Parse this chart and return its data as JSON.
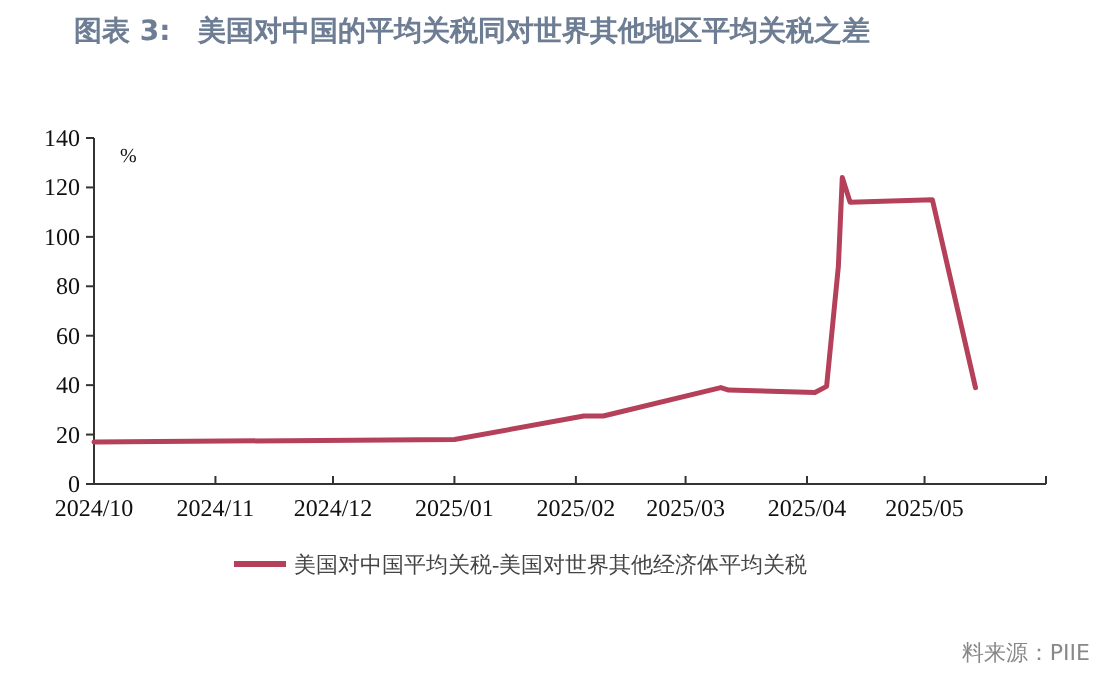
{
  "chart_data": {
    "type": "line",
    "title": "图表 3:　美国对中国的平均关税同对世界其他地区平均关税之差",
    "ylabel": "%",
    "x": [
      "2024-10-01",
      "2025-01-01",
      "2025-02-03",
      "2025-02-08",
      "2025-03-10",
      "2025-03-12",
      "2025-04-03",
      "2025-04-06",
      "2025-04-09",
      "2025-04-10",
      "2025-04-12",
      "2025-05-03",
      "2025-05-14"
    ],
    "series": [
      {
        "name": "美国对中国平均关税-美国对世界其他经济体平均关税",
        "color": "#b5405a",
        "values": [
          17,
          18,
          27.5,
          27.5,
          39,
          38,
          37,
          39.5,
          88,
          124,
          114,
          115,
          39
        ]
      }
    ],
    "xlim": [
      "2024-10-01",
      "2025-06-01"
    ],
    "xticks": [
      {
        "value": "2024-10-01",
        "label": "2024/10"
      },
      {
        "value": "2024-11-01",
        "label": "2024/11"
      },
      {
        "value": "2024-12-01",
        "label": "2024/12"
      },
      {
        "value": "2025-01-01",
        "label": "2025/01"
      },
      {
        "value": "2025-02-01",
        "label": "2025/02"
      },
      {
        "value": "2025-03-01",
        "label": "2025/03"
      },
      {
        "value": "2025-04-01",
        "label": "2025/04"
      },
      {
        "value": "2025-05-01",
        "label": "2025/05"
      },
      {
        "value": "2025-06-01",
        "label": null
      }
    ],
    "ylim": [
      0,
      140
    ],
    "yticks": [
      0,
      20,
      40,
      60,
      80,
      100,
      120,
      140
    ],
    "grid": false,
    "legend": "bottom",
    "line_style": "solid",
    "marker": "none",
    "annotations": [
      "料来源：PIIE"
    ]
  }
}
